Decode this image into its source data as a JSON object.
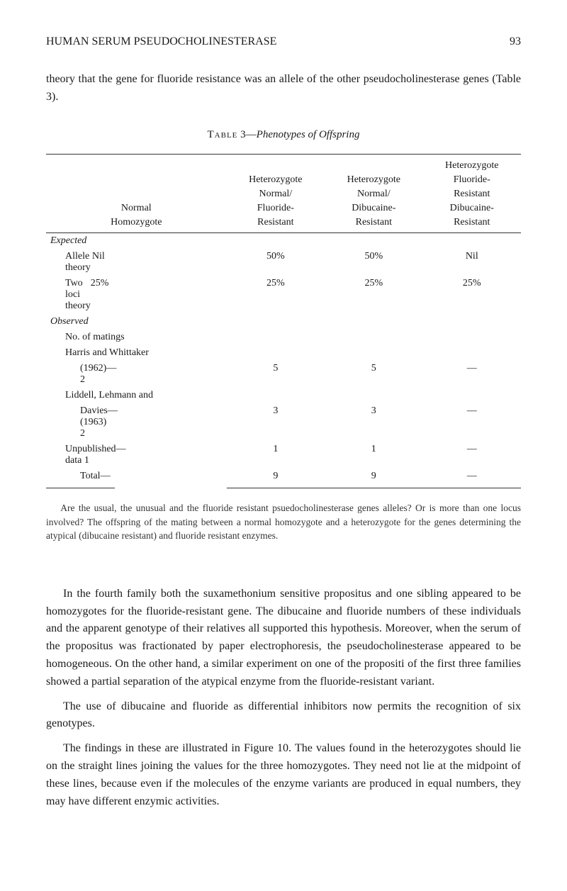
{
  "header": {
    "running_head": "HUMAN SERUM PSEUDOCHOLINESTERASE",
    "page_number": "93"
  },
  "intro_para": "theory that the gene for fluoride resistance was an allele of the other pseudocholinesterase genes (Table 3).",
  "table": {
    "caption_prefix": "Table",
    "caption_number": " 3—",
    "caption_title": "Phenotypes of Offspring",
    "columns": {
      "c1_l1": "",
      "c1_l2": "",
      "c1_l3": "Normal",
      "c1_l4": "Homozygote",
      "c2_l1": "",
      "c2_l2": "Heterozygote",
      "c2_l3": "Normal/",
      "c2_l4": "Fluoride-",
      "c2_l5": "Resistant",
      "c3_l1": "",
      "c3_l2": "Heterozygote",
      "c3_l3": "Normal/",
      "c3_l4": "Dibucaine-",
      "c3_l5": "Resistant",
      "c4_l1": "Heterozygote",
      "c4_l2": "Fluoride-",
      "c4_l3": "Resistant",
      "c4_l4": "Dibucaine-",
      "c4_l5": "Resistant"
    },
    "rows": [
      {
        "label": "Expected",
        "c2": "",
        "c3": "",
        "c4": "",
        "cls": "section-label"
      },
      {
        "label": "Allele theory",
        "c1b": "Nil",
        "c2": "50%",
        "c3": "50%",
        "c4": "Nil",
        "cls": "indent-1"
      },
      {
        "label": "Two loci theory",
        "c1b": "25%",
        "c2": "25%",
        "c3": "25%",
        "c4": "25%",
        "cls": "indent-1"
      },
      {
        "label": "Observed",
        "c2": "",
        "c3": "",
        "c4": "",
        "cls": "section-label"
      },
      {
        "label": "No. of matings",
        "c2": "",
        "c3": "",
        "c4": "",
        "cls": "indent-1"
      },
      {
        "label": "Harris and Whittaker",
        "c2": "",
        "c3": "",
        "c4": "",
        "cls": "indent-1"
      },
      {
        "label": "(1962)  2",
        "c1b": "—",
        "c2": "5",
        "c3": "5",
        "c4": "—",
        "cls": "indent-2"
      },
      {
        "label": "Liddell, Lehmann and",
        "c2": "",
        "c3": "",
        "c4": "",
        "cls": "indent-1"
      },
      {
        "label": "Davies (1963) 2",
        "c1b": "—",
        "c2": "3",
        "c3": "3",
        "c4": "—",
        "cls": "indent-2"
      },
      {
        "label": "Unpublished data 1",
        "c1b": "—",
        "c2": "1",
        "c3": "1",
        "c4": "—",
        "cls": "indent-1"
      },
      {
        "label": "Total",
        "c1b": "—",
        "c2": "9",
        "c3": "9",
        "c4": "—",
        "cls": "indent-2"
      }
    ]
  },
  "footnote": "Are the usual, the unusual and the fluoride resistant psuedocholinesterase genes alleles? Or is more than one locus involved? The offspring of the mating between a normal homozygote and a heterozygote for the genes determining the atypical (di­bucaine resistant) and fluoride resistant enzymes.",
  "para2": "In the fourth family both the suxamethonium sensitive propositus and one sibling appeared to be homozygotes for the fluoride-resistant gene. The dibucaine and fluoride numbers of these individuals and the appar­ent genotype of their relatives all supported this hypothesis. Moreover, when the serum of the propositus was fractionated by paper electro­phoresis, the pseudocholinesterase appeared to be homogeneous. On the other hand, a similar experiment on one of the propositi of the first three families showed a partial separation of the atypical enzyme from the fluoride-resistant variant.",
  "para3": "The use of dibucaine and fluoride as differential inhibitors now per­mits the recognition of six genotypes.",
  "para4": "The findings in these are illustrated in Figure 10. The values found in the heterozygotes should lie on the straight lines joining the values for the three homozygotes. They need not lie at the midpoint of these lines, because even if the molecules of the enzyme variants are produced in equal numbers, they may have different enzymic activities."
}
